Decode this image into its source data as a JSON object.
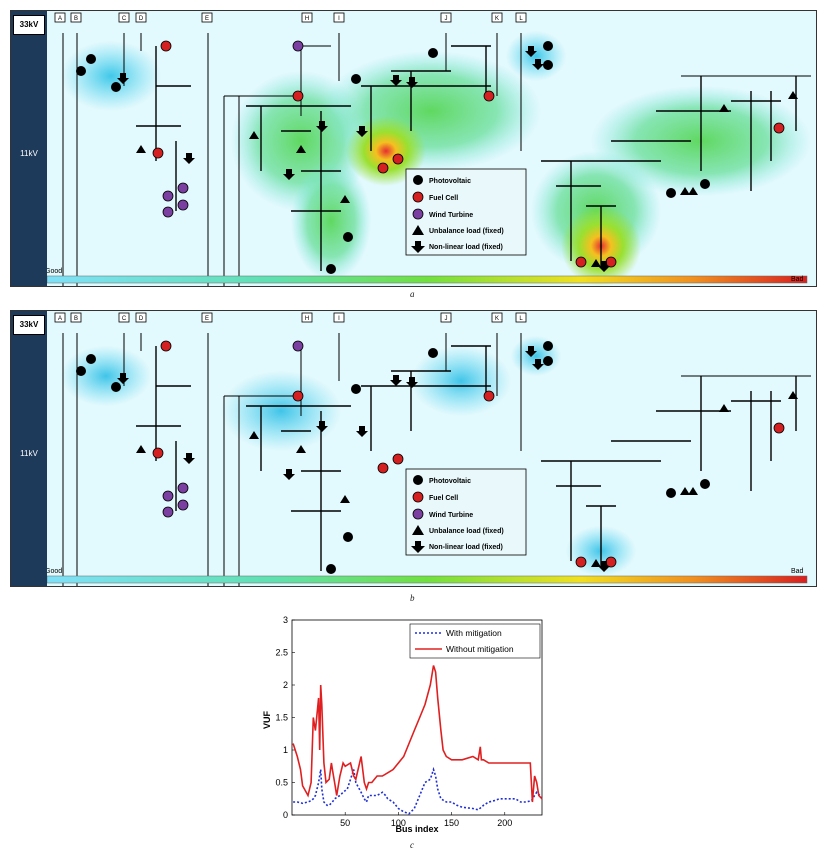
{
  "panel_a": {
    "voltage_top": "33kV",
    "voltage_main": "11kV",
    "scale_good": "Good",
    "scale_bad": "Bad",
    "caption": "a"
  },
  "panel_b": {
    "voltage_top": "33kV",
    "voltage_main": "11kV",
    "scale_good": "Good",
    "scale_bad": "Bad",
    "caption": "b"
  },
  "feeder_labels": [
    "A",
    "B",
    "C",
    "D",
    "E",
    "H",
    "I",
    "J",
    "K",
    "L"
  ],
  "legend": {
    "items": [
      {
        "label": "Photovoltaic",
        "symbol": "circle",
        "color": "#000000"
      },
      {
        "label": "Fuel Cell",
        "symbol": "circle",
        "color": "#d42020"
      },
      {
        "label": "Wind Turbine",
        "symbol": "circle",
        "color": "#7a3fa0"
      },
      {
        "label": "Unbalance load (fixed)",
        "symbol": "triangle",
        "color": "#000000"
      },
      {
        "label": "Non-linear load (fixed)",
        "symbol": "arrow",
        "color": "#000000"
      }
    ]
  },
  "caption_c": "c",
  "chart_data": {
    "type": "line",
    "xlabel": "Bus index",
    "ylabel": "VUF",
    "xlim": [
      0,
      235
    ],
    "ylim": [
      0,
      3
    ],
    "xticks": [
      50,
      100,
      150,
      200
    ],
    "yticks": [
      0,
      0.5,
      1,
      1.5,
      2,
      2.5,
      3
    ],
    "legend_position": "top-right",
    "series": [
      {
        "name": "With mitigation",
        "color": "#1f2fd6",
        "style": "dotted",
        "x": [
          1,
          5,
          10,
          15,
          18,
          20,
          22,
          25,
          27,
          28,
          30,
          33,
          35,
          38,
          40,
          45,
          48,
          52,
          55,
          58,
          60,
          65,
          68,
          70,
          72,
          75,
          80,
          85,
          88,
          90,
          95,
          100,
          105,
          110,
          115,
          120,
          125,
          130,
          133,
          135,
          137,
          140,
          145,
          150,
          155,
          160,
          170,
          175,
          178,
          180,
          185,
          190,
          195,
          200,
          205,
          210,
          215,
          220,
          225,
          228,
          230,
          233,
          235
        ],
        "y": [
          0.2,
          0.2,
          0.18,
          0.2,
          0.22,
          0.25,
          0.3,
          0.5,
          0.7,
          0.4,
          0.2,
          0.15,
          0.15,
          0.2,
          0.25,
          0.3,
          0.35,
          0.4,
          0.55,
          0.7,
          0.5,
          0.35,
          0.25,
          0.2,
          0.3,
          0.3,
          0.3,
          0.35,
          0.3,
          0.25,
          0.2,
          0.1,
          0.05,
          0.02,
          0.1,
          0.3,
          0.5,
          0.55,
          0.7,
          0.6,
          0.4,
          0.25,
          0.2,
          0.2,
          0.15,
          0.12,
          0.1,
          0.08,
          0.12,
          0.15,
          0.2,
          0.22,
          0.25,
          0.25,
          0.25,
          0.25,
          0.2,
          0.2,
          0.22,
          0.3,
          0.35,
          0.3,
          0.25
        ]
      },
      {
        "name": "Without mitigation",
        "color": "#e02020",
        "style": "solid",
        "x": [
          1,
          3,
          5,
          8,
          10,
          15,
          18,
          20,
          22,
          25,
          26,
          27,
          28,
          30,
          32,
          35,
          37,
          38,
          40,
          42,
          45,
          48,
          50,
          55,
          58,
          60,
          65,
          68,
          70,
          72,
          75,
          80,
          85,
          90,
          95,
          100,
          105,
          110,
          115,
          120,
          125,
          130,
          133,
          135,
          137,
          140,
          142,
          145,
          150,
          155,
          160,
          170,
          175,
          177,
          178,
          180,
          185,
          190,
          195,
          200,
          205,
          210,
          215,
          220,
          224,
          226,
          228,
          230,
          232,
          235
        ],
        "y": [
          1.1,
          1.0,
          0.9,
          0.7,
          0.45,
          0.3,
          0.5,
          1.5,
          1.3,
          1.8,
          1.0,
          2.0,
          1.7,
          0.8,
          0.5,
          0.55,
          0.8,
          0.7,
          0.5,
          0.3,
          0.6,
          0.8,
          0.75,
          0.8,
          0.6,
          0.55,
          0.9,
          0.5,
          0.4,
          0.5,
          0.5,
          0.6,
          0.6,
          0.65,
          0.7,
          0.8,
          0.9,
          1.1,
          1.3,
          1.5,
          1.7,
          2.0,
          2.3,
          2.2,
          1.8,
          1.3,
          1.0,
          0.9,
          0.85,
          0.85,
          0.85,
          0.9,
          0.85,
          1.05,
          0.85,
          0.85,
          0.8,
          0.8,
          0.8,
          0.8,
          0.8,
          0.8,
          0.8,
          0.8,
          0.8,
          0.2,
          0.6,
          0.5,
          0.3,
          0.25
        ]
      }
    ]
  }
}
